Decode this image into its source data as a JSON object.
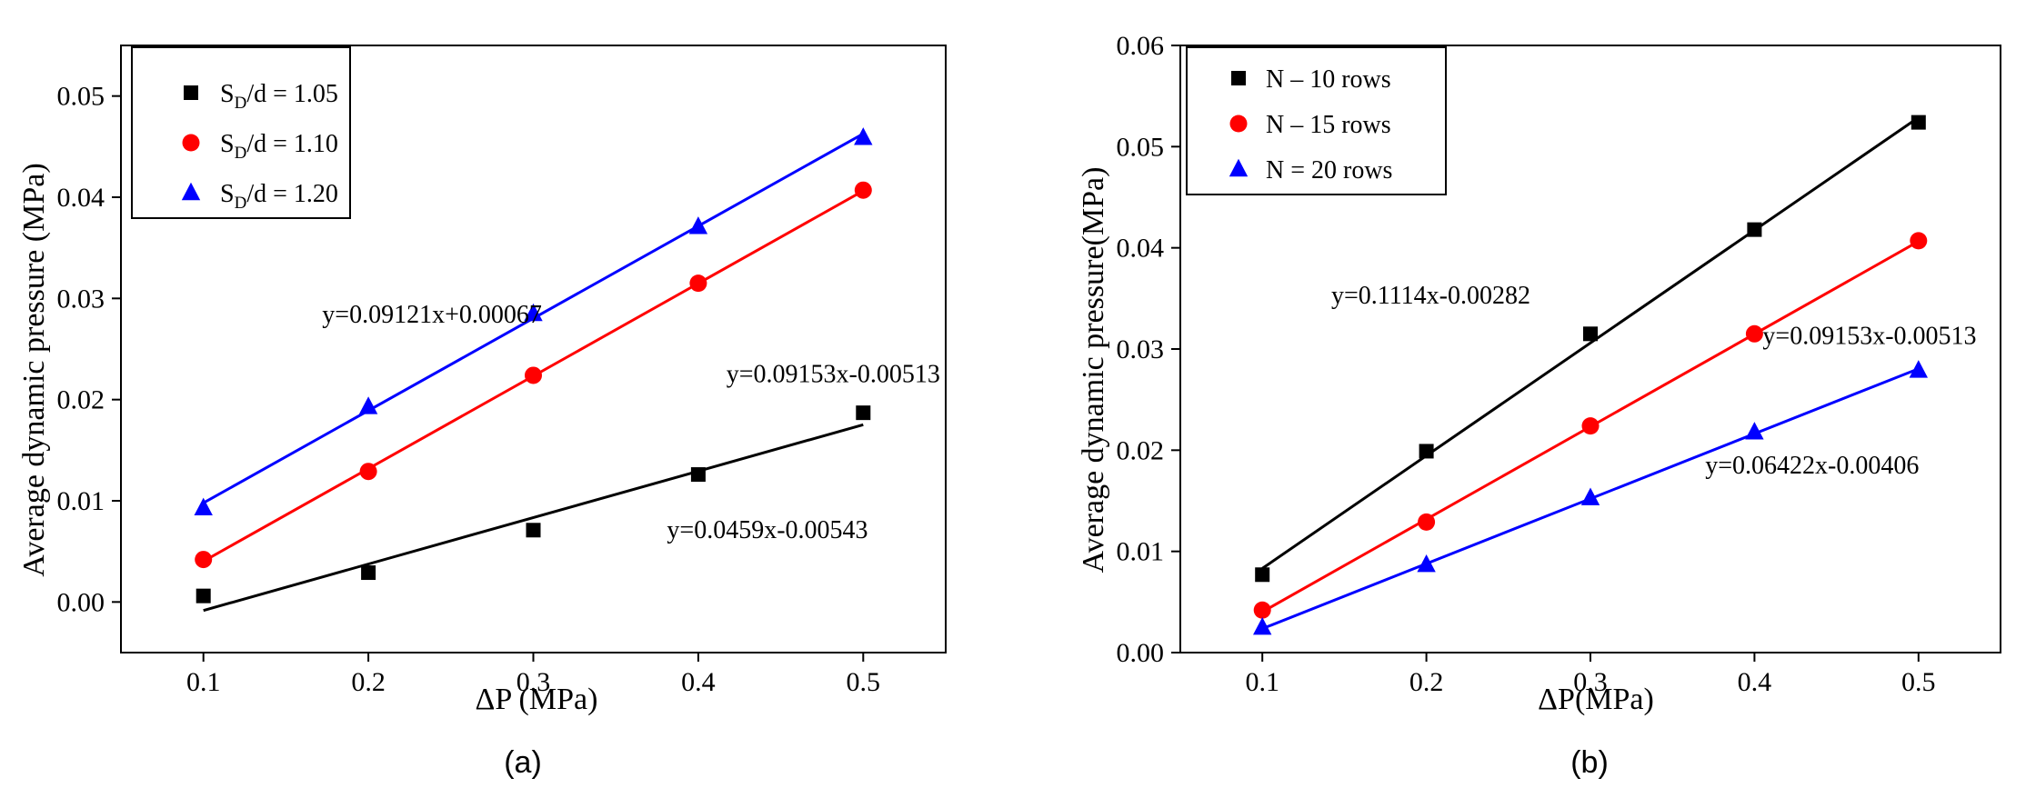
{
  "colors": {
    "black": "#000000",
    "red": "#ff0000",
    "blue": "#0000ff"
  },
  "chart_data": [
    {
      "type": "scatter",
      "caption": "(a)",
      "xlabel": "ΔP (MPa)",
      "ylabel": "Average dynamic pressure (MPa)",
      "xlim": [
        0.05,
        0.55
      ],
      "ylim": [
        -0.005,
        0.055
      ],
      "xticks": [
        0.1,
        0.2,
        0.3,
        0.4,
        0.5
      ],
      "xtick_labels": [
        "0.1",
        "0.2",
        "0.3",
        "0.4",
        "0.5"
      ],
      "yticks": [
        0,
        0.01,
        0.02,
        0.03,
        0.04,
        0.05
      ],
      "ytick_labels": [
        "0.00",
        "0.01",
        "0.02",
        "0.03",
        "0.04",
        "0.05"
      ],
      "legend_position": "top-left",
      "series": [
        {
          "name_main": "S",
          "name_sub": "D",
          "name_rest": "/d = 1.05",
          "marker": "square",
          "color": "#000000",
          "x": [
            0.1,
            0.2,
            0.3,
            0.4,
            0.5
          ],
          "y": [
            0.0006,
            0.0029,
            0.0071,
            0.0126,
            0.0187
          ],
          "fit": {
            "slope": 0.0459,
            "intercept": -0.00543
          }
        },
        {
          "name_main": "S",
          "name_sub": "D",
          "name_rest": "/d = 1.10",
          "marker": "circle",
          "color": "#ff0000",
          "x": [
            0.1,
            0.2,
            0.3,
            0.4,
            0.5
          ],
          "y": [
            0.0042,
            0.0129,
            0.0224,
            0.0315,
            0.0407
          ],
          "fit": {
            "slope": 0.09153,
            "intercept": -0.00513
          }
        },
        {
          "name_main": "S",
          "name_sub": "D",
          "name_rest": "/d = 1.20",
          "marker": "triangle",
          "color": "#0000ff",
          "x": [
            0.1,
            0.2,
            0.3,
            0.4,
            0.5
          ],
          "y": [
            0.0093,
            0.0193,
            0.0285,
            0.0371,
            0.0459
          ],
          "fit": {
            "slope": 0.09121,
            "intercept": 0.00067
          }
        }
      ],
      "annotations": [
        {
          "text": "y=0.09121x+0.00067",
          "x": 0.172,
          "y": 0.0276
        },
        {
          "text": "y=0.09153x-0.00513",
          "x": 0.417,
          "y": 0.0217
        },
        {
          "text": "y=0.0459x-0.00543",
          "x": 0.381,
          "y": 0.0063
        }
      ]
    },
    {
      "type": "scatter",
      "caption": "(b)",
      "xlabel": "ΔP(MPa)",
      "ylabel": "Average dynamic pressure(MPa)",
      "xlim": [
        0.05,
        0.55
      ],
      "ylim": [
        0,
        0.06
      ],
      "xticks": [
        0.1,
        0.2,
        0.3,
        0.4,
        0.5
      ],
      "xtick_labels": [
        "0.1",
        "0.2",
        "0.3",
        "0.4",
        "0.5"
      ],
      "yticks": [
        0,
        0.01,
        0.02,
        0.03,
        0.04,
        0.05,
        0.06
      ],
      "ytick_labels": [
        "0.00",
        "0.01",
        "0.02",
        "0.03",
        "0.04",
        "0.05",
        "0.06"
      ],
      "legend_position": "top-left",
      "series": [
        {
          "name": "N – 10 rows",
          "marker": "square",
          "color": "#000000",
          "x": [
            0.1,
            0.2,
            0.3,
            0.4,
            0.5
          ],
          "y": [
            0.0077,
            0.0199,
            0.0315,
            0.0418,
            0.0524
          ],
          "fit": {
            "slope": 0.1114,
            "intercept": -0.00282
          }
        },
        {
          "name": "N – 15 rows",
          "marker": "circle",
          "color": "#ff0000",
          "x": [
            0.1,
            0.2,
            0.3,
            0.4,
            0.5
          ],
          "y": [
            0.0042,
            0.0129,
            0.0224,
            0.0315,
            0.0407
          ],
          "fit": {
            "slope": 0.09153,
            "intercept": -0.00513
          }
        },
        {
          "name": "N = 20 rows",
          "marker": "triangle",
          "color": "#0000ff",
          "x": [
            0.1,
            0.2,
            0.3,
            0.4,
            0.5
          ],
          "y": [
            0.0025,
            0.0087,
            0.0153,
            0.0218,
            0.0279
          ],
          "fit": {
            "slope": 0.06422,
            "intercept": -0.00406
          }
        }
      ],
      "annotations": [
        {
          "text": "y=0.1114x-0.00282",
          "x": 0.142,
          "y": 0.0345
        },
        {
          "text": "y=0.09153x-0.00513",
          "x": 0.405,
          "y": 0.0305
        },
        {
          "text": "y=0.06422x-0.00406",
          "x": 0.37,
          "y": 0.0177
        }
      ]
    }
  ]
}
